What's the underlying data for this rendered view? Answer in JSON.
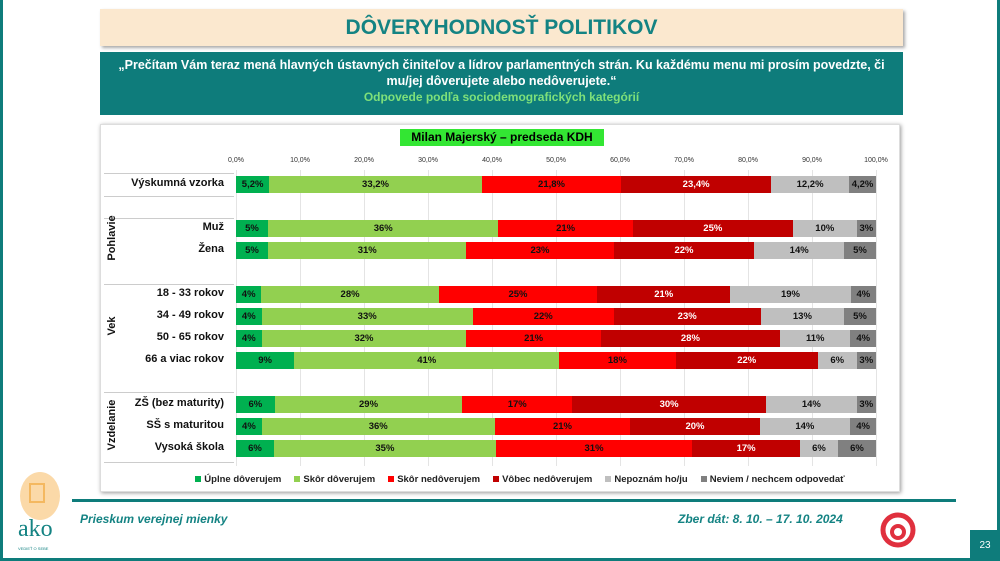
{
  "header": {
    "title": "DÔVERYHODNOSŤ POLITIKOV"
  },
  "question": {
    "text": "„Prečítam Vám teraz mená hlavných ústavných činiteľov a lídrov parlamentných strán. Ku každému menu mi prosím povedzte, či mu/jej dôverujete alebo nedôverujete.“",
    "subtitle": "Odpovede podľa sociodemografických kategórií"
  },
  "footer": {
    "left": "Prieskum verejnej mienky",
    "right": "Zber dát: 8. 10. – 17. 10. 2024",
    "page": "23",
    "logo_text": "ako",
    "logo_tagline": "VEDIEŤ O SEBE"
  },
  "chart_data": {
    "type": "bar",
    "orientation": "horizontal",
    "stacked": true,
    "title": "Milan Majerský – predseda KDH",
    "xlim": [
      0,
      100
    ],
    "xticks": [
      "0,0%",
      "10,0%",
      "20,0%",
      "30,0%",
      "40,0%",
      "50,0%",
      "60,0%",
      "70,0%",
      "80,0%",
      "90,0%",
      "100,0%"
    ],
    "grid": true,
    "legend_position": "bottom",
    "series": [
      {
        "name": "Úplne dôverujem",
        "color": "#00b050"
      },
      {
        "name": "Skôr dôverujem",
        "color": "#92d050"
      },
      {
        "name": "Skôr nedôverujem",
        "color": "#ff0000"
      },
      {
        "name": "Vôbec nedôverujem",
        "color": "#c00000"
      },
      {
        "name": "Nepoznám ho/ju",
        "color": "#bfbfbf"
      },
      {
        "name": "Neviem / nechcem odpovedať",
        "color": "#808080"
      }
    ],
    "groups": [
      {
        "name": "",
        "rows": [
          {
            "label": "Výskumná vzorka",
            "values": [
              5.2,
              33.2,
              21.8,
              23.4,
              12.2,
              4.2
            ],
            "labels": [
              "5,2%",
              "33,2%",
              "21,8%",
              "23,4%",
              "12,2%",
              "4,2%"
            ]
          }
        ]
      },
      {
        "name": "Pohlavie",
        "rows": [
          {
            "label": "Muž",
            "values": [
              5,
              36,
              21,
              25,
              10,
              3
            ],
            "labels": [
              "5%",
              "36%",
              "21%",
              "25%",
              "10%",
              "3%"
            ]
          },
          {
            "label": "Žena",
            "values": [
              5,
              31,
              23,
              22,
              14,
              5
            ],
            "labels": [
              "5%",
              "31%",
              "23%",
              "22%",
              "14%",
              "5%"
            ]
          }
        ]
      },
      {
        "name": "Vek",
        "rows": [
          {
            "label": "18 - 33 rokov",
            "values": [
              4,
              28,
              25,
              21,
              19,
              4
            ],
            "labels": [
              "4%",
              "28%",
              "25%",
              "21%",
              "19%",
              "4%"
            ]
          },
          {
            "label": "34 - 49 rokov",
            "values": [
              4,
              33,
              22,
              23,
              13,
              5
            ],
            "labels": [
              "4%",
              "33%",
              "22%",
              "23%",
              "13%",
              "5%"
            ]
          },
          {
            "label": "50 - 65 rokov",
            "values": [
              4,
              32,
              21,
              28,
              11,
              4
            ],
            "labels": [
              "4%",
              "32%",
              "21%",
              "28%",
              "11%",
              "4%"
            ]
          },
          {
            "label": "66 a viac rokov",
            "values": [
              9,
              41,
              18,
              22,
              6,
              3
            ],
            "labels": [
              "9%",
              "41%",
              "18%",
              "22%",
              "6%",
              "3%"
            ]
          }
        ]
      },
      {
        "name": "Vzdelanie",
        "rows": [
          {
            "label": "ZŠ (bez maturity)",
            "values": [
              6,
              29,
              17,
              30,
              14,
              3
            ],
            "labels": [
              "6%",
              "29%",
              "17%",
              "30%",
              "14%",
              "3%"
            ]
          },
          {
            "label": "SŠ s maturitou",
            "values": [
              4,
              36,
              21,
              20,
              14,
              4
            ],
            "labels": [
              "4%",
              "36%",
              "21%",
              "20%",
              "14%",
              "4%"
            ]
          },
          {
            "label": "Vysoká škola",
            "values": [
              6,
              35,
              31,
              17,
              6,
              6
            ],
            "labels": [
              "6%",
              "35%",
              "31%",
              "17%",
              "6%",
              "6%"
            ]
          }
        ]
      }
    ]
  }
}
